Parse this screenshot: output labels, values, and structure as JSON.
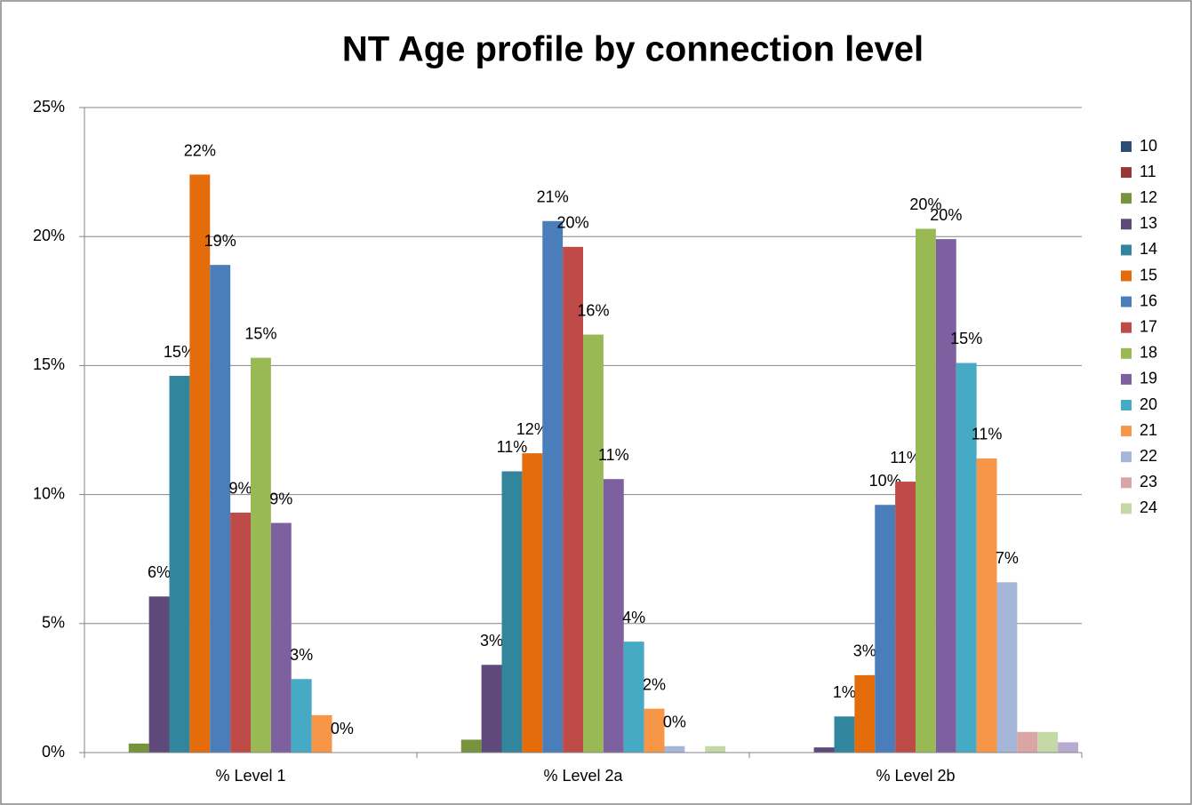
{
  "chart_data": {
    "type": "bar",
    "title": "NT Age profile by connection level",
    "categories": [
      "% Level 1",
      "% Level 2a",
      "% Level 2b"
    ],
    "ylim": [
      0,
      25
    ],
    "yticks": [
      {
        "value": 0,
        "label": "0%"
      },
      {
        "value": 5,
        "label": "5%"
      },
      {
        "value": 10,
        "label": "10%"
      },
      {
        "value": 15,
        "label": "15%"
      },
      {
        "value": 20,
        "label": "20%"
      },
      {
        "value": 25,
        "label": "25%"
      }
    ],
    "grid": true,
    "legend": "right",
    "series": [
      {
        "name": "10",
        "color": "#2c4d75",
        "values": [
          0,
          0,
          0
        ],
        "value_labels": [
          null,
          null,
          null
        ]
      },
      {
        "name": "11",
        "color": "#953735",
        "values": [
          0,
          0,
          0
        ],
        "value_labels": [
          null,
          null,
          null
        ]
      },
      {
        "name": "12",
        "color": "#77933c",
        "values": [
          0.35,
          0.5,
          0
        ],
        "value_labels": [
          null,
          null,
          null
        ]
      },
      {
        "name": "13",
        "color": "#5f497a",
        "values": [
          6.05,
          3.4,
          0.2
        ],
        "value_labels": [
          "6%",
          "3%",
          null
        ]
      },
      {
        "name": "14",
        "color": "#31859c",
        "values": [
          14.6,
          10.9,
          1.4
        ],
        "value_labels": [
          "15%",
          "11%",
          "1%"
        ]
      },
      {
        "name": "15",
        "color": "#e46c0a",
        "values": [
          22.4,
          11.6,
          3.0
        ],
        "value_labels": [
          "22%",
          "12%",
          "3%"
        ]
      },
      {
        "name": "16",
        "color": "#4a7ebb",
        "values": [
          18.9,
          20.6,
          9.6
        ],
        "value_labels": [
          "19%",
          "21%",
          "10%"
        ]
      },
      {
        "name": "17",
        "color": "#be4b48",
        "values": [
          9.3,
          19.6,
          10.5
        ],
        "value_labels": [
          "9%",
          "20%",
          "11%"
        ]
      },
      {
        "name": "18",
        "color": "#98b954",
        "values": [
          15.3,
          16.2,
          20.3
        ],
        "value_labels": [
          "15%",
          "16%",
          "20%"
        ]
      },
      {
        "name": "19",
        "color": "#7d60a0",
        "values": [
          8.9,
          10.6,
          19.9
        ],
        "value_labels": [
          "9%",
          "11%",
          "20%"
        ]
      },
      {
        "name": "20",
        "color": "#46aac5",
        "values": [
          2.85,
          4.3,
          15.1
        ],
        "value_labels": [
          "3%",
          "4%",
          "15%"
        ]
      },
      {
        "name": "21",
        "color": "#f79646",
        "values": [
          1.45,
          1.7,
          11.4
        ],
        "value_labels": [
          null,
          "2%",
          "11%"
        ]
      },
      {
        "name": "22",
        "color": "#a5b6d9",
        "values": [
          0,
          0.25,
          6.6
        ],
        "value_labels": [
          "0%",
          "0%",
          "7%"
        ]
      },
      {
        "name": "23",
        "color": "#d9a5a5",
        "values": [
          0,
          0,
          0.8
        ],
        "value_labels": [
          null,
          null,
          null
        ]
      },
      {
        "name": "24",
        "color": "#c4d9a5",
        "values": [
          0,
          0.25,
          0.8
        ],
        "value_labels": [
          null,
          null,
          null
        ]
      },
      {
        "name": null,
        "color": "#b9abcf",
        "values": [
          0,
          0,
          0.4
        ],
        "value_labels": [
          null,
          null,
          null
        ]
      }
    ]
  }
}
